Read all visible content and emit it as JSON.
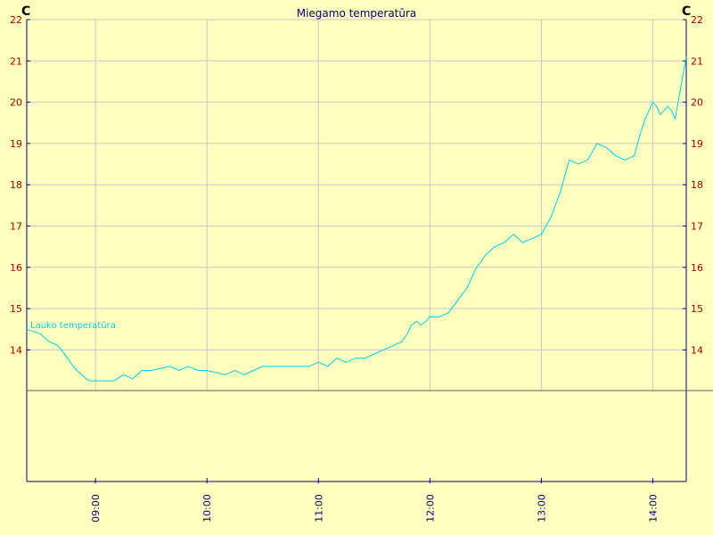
{
  "chart_data": {
    "type": "line",
    "title": "Miegamo temperatūra",
    "unit_left": "C",
    "unit_right": "C",
    "ylim": [
      13.0,
      22
    ],
    "yticks": [
      14,
      15,
      16,
      17,
      18,
      19,
      20,
      21,
      22
    ],
    "xlim": [
      "08:23",
      "14:18"
    ],
    "xticks": [
      "09:00",
      "10:00",
      "11:00",
      "12:00",
      "13:00",
      "14:00"
    ],
    "grid": true,
    "colors": {
      "background": "#ffffc0",
      "series": "#00ccee",
      "grid": "#c8c8c8",
      "axis": "#000080",
      "ytick": "#a00000"
    },
    "series": [
      {
        "name": "Lauko temperatūra",
        "x": [
          "08:23",
          "08:30",
          "08:35",
          "08:40",
          "08:45",
          "08:48",
          "08:50",
          "08:55",
          "08:57",
          "09:00",
          "09:10",
          "09:15",
          "09:20",
          "09:25",
          "09:30",
          "09:40",
          "09:45",
          "09:50",
          "09:55",
          "10:00",
          "10:10",
          "10:15",
          "10:20",
          "10:25",
          "10:30",
          "10:40",
          "10:45",
          "10:50",
          "10:55",
          "11:00",
          "11:05",
          "11:10",
          "11:15",
          "11:20",
          "11:25",
          "11:30",
          "11:35",
          "11:40",
          "11:45",
          "11:48",
          "11:50",
          "11:53",
          "11:55",
          "11:58",
          "12:00",
          "12:05",
          "12:10",
          "12:15",
          "12:20",
          "12:25",
          "12:27",
          "12:30",
          "12:35",
          "12:40",
          "12:45",
          "12:50",
          "12:55",
          "13:00",
          "13:05",
          "13:10",
          "13:15",
          "13:20",
          "13:25",
          "13:30",
          "13:35",
          "13:40",
          "13:45",
          "13:50",
          "13:53",
          "13:56",
          "13:58",
          "14:00",
          "14:02",
          "14:04",
          "14:06",
          "14:08",
          "14:10",
          "14:12",
          "14:14",
          "14:16",
          "14:18"
        ],
        "y": [
          14.5,
          14.4,
          14.2,
          14.1,
          13.8,
          13.6,
          13.5,
          13.3,
          13.25,
          13.25,
          13.25,
          13.4,
          13.3,
          13.5,
          13.5,
          13.6,
          13.5,
          13.6,
          13.5,
          13.5,
          13.4,
          13.5,
          13.4,
          13.5,
          13.6,
          13.6,
          13.6,
          13.6,
          13.6,
          13.7,
          13.6,
          13.8,
          13.7,
          13.8,
          13.8,
          13.9,
          14.0,
          14.1,
          14.2,
          14.4,
          14.6,
          14.7,
          14.6,
          14.7,
          14.8,
          14.8,
          14.9,
          15.2,
          15.5,
          16.0,
          16.1,
          16.3,
          16.5,
          16.6,
          16.8,
          16.6,
          16.7,
          16.8,
          17.2,
          17.8,
          18.6,
          18.5,
          18.6,
          19.0,
          18.9,
          18.7,
          18.6,
          18.7,
          19.2,
          19.6,
          19.8,
          20.0,
          19.9,
          19.7,
          19.8,
          19.9,
          19.8,
          19.6,
          20.1,
          20.6,
          21.1
        ]
      }
    ]
  }
}
